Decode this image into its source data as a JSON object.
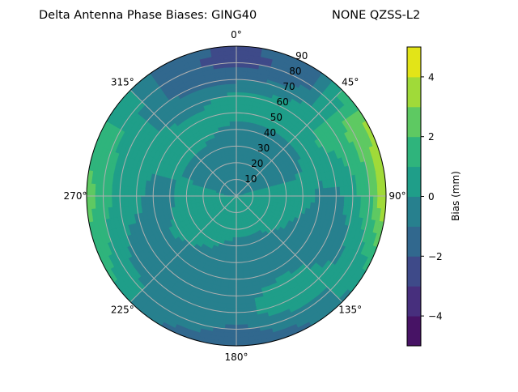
{
  "chart_data": {
    "type": "heatmap",
    "subtype": "polar-filled-contour",
    "title_left": "Delta Antenna Phase Biases: GING40",
    "title_right": "NONE QZSS-L2",
    "angular_axis": {
      "zero_location": "top",
      "direction": "clockwise",
      "tick_labels": [
        "0°",
        "45°",
        "90°",
        "135°",
        "180°",
        "225°",
        "270°",
        "315°"
      ]
    },
    "radial_axis": {
      "range": [
        0,
        90
      ],
      "tick_labels": [
        "10",
        "20",
        "30",
        "40",
        "50",
        "60",
        "70",
        "80",
        "90"
      ]
    },
    "grid": true,
    "colorbar": {
      "label": "Bias (mm)",
      "range": [
        -5,
        5
      ],
      "levels": [
        -5,
        -4,
        -3,
        -2,
        -1,
        0,
        1,
        2,
        3,
        4,
        5
      ],
      "tick_labels": [
        "−4",
        "−2",
        "0",
        "2",
        "4"
      ],
      "tick_values": [
        -4,
        -2,
        0,
        2,
        4
      ],
      "colormap": "viridis",
      "colors": [
        "#471365",
        "#472f7d",
        "#3e4a89",
        "#31688e",
        "#27808e",
        "#1f9e89",
        "#2fb47c",
        "#5ec962",
        "#a0da39",
        "#e2e418"
      ]
    },
    "azimuths_deg": [
      0,
      30,
      60,
      90,
      120,
      150,
      180,
      210,
      240,
      270,
      300,
      330
    ],
    "zeniths_deg": [
      0,
      10,
      20,
      30,
      40,
      50,
      60,
      70,
      80,
      90
    ],
    "bias_mm": [
      [
        -0.3,
        -0.5,
        -0.5,
        -0.5,
        -0.3,
        0.3,
        0.3,
        -1.2,
        -2.5,
        -2.2
      ],
      [
        -0.3,
        -0.5,
        -0.5,
        -0.5,
        -0.4,
        0.3,
        0.5,
        -0.5,
        -1.5,
        -1.5
      ],
      [
        -0.3,
        -0.4,
        -0.5,
        -0.5,
        -0.3,
        0.5,
        1.2,
        1.5,
        2.5,
        3.0
      ],
      [
        0.2,
        0.3,
        0.5,
        0.5,
        0.5,
        -0.2,
        -0.3,
        0.5,
        1.8,
        4.2
      ],
      [
        0.3,
        0.5,
        0.5,
        0.3,
        -0.3,
        -0.5,
        -0.5,
        -0.3,
        0.5,
        0.8
      ],
      [
        0.3,
        0.3,
        0.3,
        -0.3,
        -0.5,
        -0.5,
        0.5,
        1.2,
        -0.5,
        -1.2
      ],
      [
        0.3,
        0.3,
        0.2,
        -0.3,
        -0.5,
        -0.5,
        -0.5,
        -0.5,
        -1.2,
        -1.5
      ],
      [
        0.3,
        0.5,
        0.5,
        0.3,
        -0.3,
        -0.5,
        -0.5,
        -0.5,
        -0.5,
        -1.2
      ],
      [
        0.3,
        0.5,
        0.5,
        0.5,
        0.3,
        -0.3,
        -0.5,
        -0.3,
        0.5,
        1.5
      ],
      [
        -0.2,
        0.3,
        0.5,
        0.5,
        -0.3,
        -0.5,
        0.3,
        0.5,
        1.5,
        2.5
      ],
      [
        -0.3,
        -0.5,
        -0.5,
        -0.3,
        0.3,
        0.5,
        0.3,
        0.5,
        1.2,
        1.2
      ],
      [
        -0.3,
        -0.5,
        -0.5,
        -0.5,
        0.3,
        0.3,
        -0.5,
        -1.2,
        -1.5,
        -1.5
      ]
    ]
  }
}
